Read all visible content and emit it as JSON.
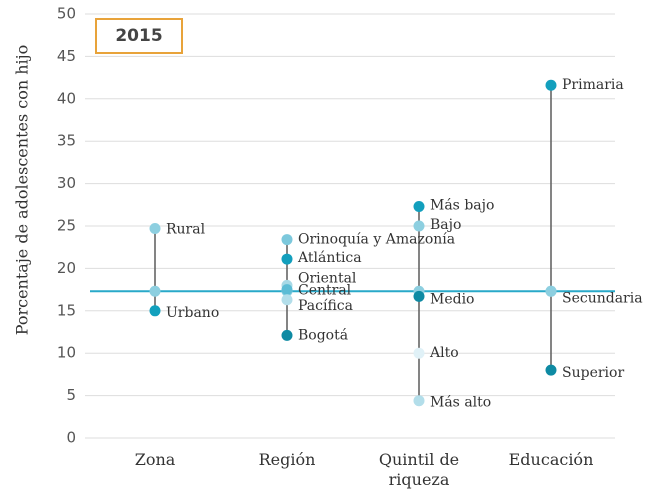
{
  "chart_data": {
    "type": "dot-range",
    "title": "2015",
    "y_label": "Porcentaje de adolescentes con hijo",
    "ylim": [
      0,
      50
    ],
    "yticks": [
      0,
      5,
      10,
      15,
      20,
      25,
      30,
      35,
      40,
      45,
      50
    ],
    "grid": true,
    "reference": 17.3,
    "reference_color": "#29a9c9",
    "center_color": "#8dcfe0",
    "categories": [
      "Zona",
      "Región",
      "Quintil de riqueza",
      "Educación"
    ],
    "groups": [
      {
        "labels": [
          "Rural",
          "Urbano"
        ],
        "values": [
          24.7,
          15.0
        ],
        "colors": [
          "#8dcfe0",
          "#12a0bd"
        ]
      },
      {
        "labels": [
          "Orinoquía y Amazonía",
          "Atlántica",
          "Oriental",
          "Central",
          "Pacífica",
          "Bogotá"
        ],
        "values": [
          23.4,
          21.1,
          18.0,
          17.5,
          16.3,
          12.1
        ],
        "colors": [
          "#7cc8dc",
          "#139fbd",
          "#a7d9e6",
          "#5cbcd5",
          "#b3deea",
          "#0e8aa3"
        ]
      },
      {
        "labels": [
          "Más bajo",
          "Bajo",
          "Medio",
          "Alto",
          "Más alto"
        ],
        "values": [
          27.3,
          25.0,
          16.7,
          10.0,
          4.4
        ],
        "colors": [
          "#129fbd",
          "#8dcfe0",
          "#0e8aa3",
          "#e0f1f7",
          "#b3deea"
        ]
      },
      {
        "labels": [
          "Primaria",
          "Secundaria",
          "Superior"
        ],
        "values": [
          41.6,
          17.3,
          8.0
        ],
        "colors": [
          "#139fbd",
          "#8dcfe0",
          "#0e8aa3"
        ]
      }
    ]
  }
}
